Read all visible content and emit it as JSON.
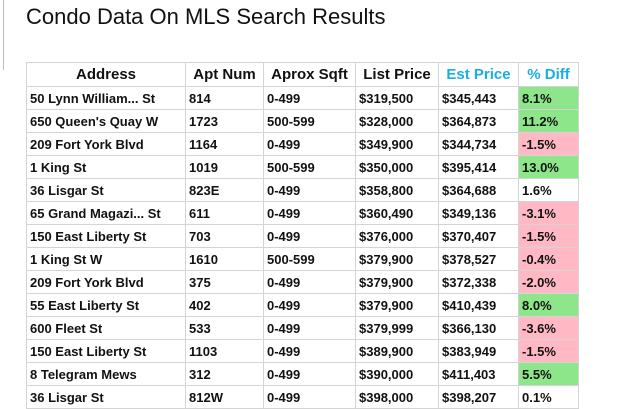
{
  "header": {
    "title": "Condo Data On MLS Search Results"
  },
  "table": {
    "columns": [
      "Address",
      "Apt Num",
      "Aprox Sqft",
      "List Price",
      "Est Price",
      "% Diff"
    ],
    "rows": [
      [
        "50 Lynn William... St",
        "814",
        "0-499",
        "$319,500",
        "$345,443",
        "8.1%"
      ],
      [
        "650 Queen's Quay W",
        "1723",
        "500-599",
        "$328,000",
        "$364,873",
        "11.2%"
      ],
      [
        "209 Fort York Blvd",
        "1164",
        "0-499",
        "$349,900",
        "$344,734",
        "-1.5%"
      ],
      [
        "1 King St",
        "1019",
        "500-599",
        "$350,000",
        "$395,414",
        "13.0%"
      ],
      [
        "36 Lisgar St",
        "823E",
        "0-499",
        "$358,800",
        "$364,688",
        "1.6%"
      ],
      [
        "65 Grand Magazi... St",
        "611",
        "0-499",
        "$360,490",
        "$349,136",
        "-3.1%"
      ],
      [
        "150 East Liberty St",
        "703",
        "0-499",
        "$376,000",
        "$370,407",
        "-1.5%"
      ],
      [
        "1 King St W",
        "1610",
        "500-599",
        "$379,900",
        "$378,527",
        "-0.4%"
      ],
      [
        "209 Fort York Blvd",
        "375",
        "0-499",
        "$379,900",
        "$372,338",
        "-2.0%"
      ],
      [
        "55 East Liberty St",
        "402",
        "0-499",
        "$379,900",
        "$410,439",
        "8.0%"
      ],
      [
        "600 Fleet St",
        "533",
        "0-499",
        "$379,999",
        "$366,130",
        "-3.6%"
      ],
      [
        "150 East Liberty St",
        "1103",
        "0-499",
        "$389,900",
        "$383,949",
        "-1.5%"
      ],
      [
        "8 Telegram Mews",
        "312",
        "0-499",
        "$390,000",
        "$411,403",
        "5.5%"
      ],
      [
        "36 Lisgar St",
        "812W",
        "0-499",
        "$398,000",
        "$398,207",
        "0.1%"
      ]
    ],
    "diff_colors": [
      "#8ee68a",
      "#8ee68a",
      "#ffb8c4",
      "#8ee68a",
      "#ffffff",
      "#ffb8c4",
      "#ffb8c4",
      "#ffb8c4",
      "#ffb8c4",
      "#8ee68a",
      "#ffb8c4",
      "#ffb8c4",
      "#8ee68a",
      "#ffffff"
    ]
  }
}
